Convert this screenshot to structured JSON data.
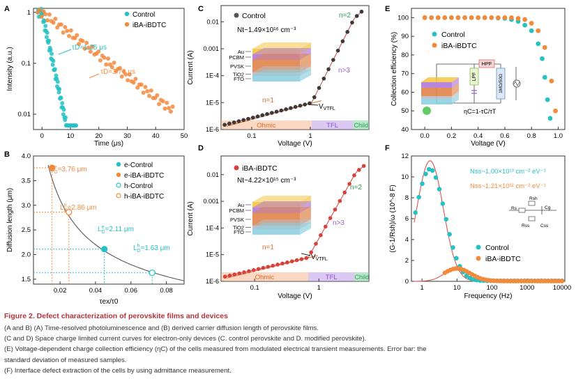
{
  "colors": {
    "control": "#27c1c4",
    "ibdtc": "#f28a3c",
    "fit": "#d9534f",
    "scl": "#3a3a3a",
    "ibdtc_scl": "#d8403c",
    "ohmic": "#f7a97a",
    "tfl": "#b993e6",
    "child": "#7fd6a0",
    "n2": "#2e9b55",
    "n3": "#9a5fd6",
    "n1": "#e26b2b",
    "caption_title": "#b5323a"
  },
  "chart_data": [
    {
      "panel": "A",
      "type": "scatter",
      "xlabel": "Time (μs)",
      "ylabel": "Intensity (a.u.)",
      "xlim": [
        -3,
        50
      ],
      "ylim_log": [
        0.005,
        1.2
      ],
      "xticks": [
        0,
        10,
        20,
        30,
        40,
        50
      ],
      "yticks": [
        {
          "v": 1,
          "label": "1"
        },
        {
          "v": 0.1,
          "label": "0.1"
        },
        {
          "v": 0.01,
          "label": "0.01"
        }
      ],
      "series": [
        {
          "name": "Control",
          "tau": 1.25,
          "label": "τD=1.25 μs",
          "color": "#27c1c4"
        },
        {
          "name": "iBA-iBDTC",
          "tau": 3.71,
          "label": "τD=3.71 μs",
          "color": "#f28a3c"
        }
      ]
    },
    {
      "panel": "B",
      "type": "scatter",
      "xlabel": "τex/τ0",
      "ylabel": "Diffusion length (μm)",
      "xlim": [
        0.005,
        0.09
      ],
      "ylim": [
        1.4,
        4.0
      ],
      "xticks": [
        0.02,
        0.04,
        0.06,
        0.08
      ],
      "yticks": [
        1.5,
        2.0,
        2.5,
        3.0,
        3.5,
        4.0
      ],
      "points": [
        {
          "name": "e-Control",
          "x": 0.045,
          "y": 2.11,
          "label": "L=2.11 μm",
          "color": "#27c1c4",
          "filled": true
        },
        {
          "name": "e-iBA-iBDTC",
          "x": 0.0155,
          "y": 3.76,
          "label": "L=3.76 μm",
          "color": "#f28a3c",
          "filled": true
        },
        {
          "name": "h-Control",
          "x": 0.072,
          "y": 1.63,
          "label": "L=1.63 μm",
          "color": "#27c1c4",
          "filled": false
        },
        {
          "name": "h-iBA-iBDTC",
          "x": 0.025,
          "y": 2.86,
          "label": "L=2.86 μm",
          "color": "#f28a3c",
          "filled": false
        }
      ],
      "legend": [
        "e-Control",
        "e-iBA-iBDTC",
        "h-Control",
        "h-iBA-iBDTC"
      ]
    },
    {
      "panel": "C",
      "type": "scatter",
      "title": "Control",
      "annotation": "Nt~1.49×10^16 cm^-3",
      "xlabel": "Voltage (V)",
      "ylabel": "Current (A)",
      "xlim_log": [
        0.03,
        10
      ],
      "ylim_log": [
        1e-06,
        0.04
      ],
      "vtfl": 1.0,
      "regions": [
        "Ohmic",
        "TFL",
        "Child"
      ],
      "slopes": [
        "n=1",
        "n>3",
        "n=2"
      ],
      "stack": [
        "Au",
        "PCBM",
        "PVSK",
        "TiO2",
        "FTO"
      ]
    },
    {
      "panel": "D",
      "type": "scatter",
      "title": "iBA-iBDTC",
      "annotation": "Nt~4.22×10^15 cm^-3",
      "xlabel": "Voltage (V)",
      "ylabel": "Current (A)",
      "xlim_log": [
        0.03,
        6
      ],
      "ylim_log": [
        1e-06,
        0.05
      ],
      "vtfl": 0.7,
      "regions": [
        "Ohmic",
        "TFL",
        "Child"
      ],
      "slopes": [
        "n=1",
        "n>3",
        "n=2"
      ],
      "stack": [
        "Au",
        "PCBM",
        "PVSK",
        "TiO2",
        "FTO"
      ]
    },
    {
      "panel": "E",
      "type": "scatter",
      "xlabel": "Voltage (V)",
      "ylabel": "Collection efficiency (%)",
      "xlim": [
        -0.1,
        1.05
      ],
      "ylim": [
        40,
        105
      ],
      "xticks": [
        0.0,
        0.2,
        0.4,
        0.6,
        0.8,
        1.0
      ],
      "yticks": [
        40,
        50,
        60,
        70,
        80,
        90,
        100
      ],
      "series": [
        {
          "name": "Control",
          "color": "#27c1c4",
          "x": [
            0.0,
            0.05,
            0.1,
            0.15,
            0.2,
            0.25,
            0.3,
            0.35,
            0.4,
            0.45,
            0.5,
            0.55,
            0.6,
            0.65,
            0.7,
            0.75,
            0.8,
            0.85,
            0.88,
            0.9,
            0.92,
            0.94
          ],
          "y": [
            100,
            100,
            100,
            100,
            100,
            100,
            100,
            100,
            100,
            100,
            100,
            99.8,
            99.6,
            99,
            98,
            96,
            93,
            86,
            78,
            68,
            56,
            46
          ]
        },
        {
          "name": "iBA-iBDTC",
          "color": "#f28a3c",
          "x": [
            0.0,
            0.05,
            0.1,
            0.15,
            0.2,
            0.25,
            0.3,
            0.35,
            0.4,
            0.45,
            0.5,
            0.55,
            0.6,
            0.65,
            0.7,
            0.75,
            0.8,
            0.85,
            0.9,
            0.95,
            0.98
          ],
          "y": [
            100,
            100,
            100,
            100,
            100,
            100,
            100,
            100,
            100,
            100,
            100,
            100,
            100,
            100,
            99.6,
            99,
            97,
            93,
            84,
            66,
            50
          ]
        }
      ],
      "circuit": {
        "lpf": "LPF",
        "hpf": "HPF",
        "res": "1MΩ/50Ω",
        "formula": "ηC=1-τC/τT"
      }
    },
    {
      "panel": "F",
      "type": "scatter",
      "xlabel": "Frequency (Hz)",
      "ylabel": "(G-1/Rsh)/ω (10^-8 F)",
      "xlim_log": [
        0.5,
        12000
      ],
      "ylim": [
        0,
        12
      ],
      "xticks": [
        {
          "v": 1,
          "label": "1"
        },
        {
          "v": 10,
          "label": "10"
        },
        {
          "v": 100,
          "label": "100"
        },
        {
          "v": 1000,
          "label": "1000"
        },
        {
          "v": 10000,
          "label": "10000"
        }
      ],
      "yticks": [
        0,
        2,
        4,
        6,
        8,
        10,
        12
      ],
      "series": [
        {
          "name": "Control",
          "color": "#27c1c4",
          "peak_f": 1.7,
          "peak_y": 10.7
        },
        {
          "name": "iBA-iBDTC",
          "color": "#f28a3c",
          "peak_f": 10,
          "peak_y": 1.2
        }
      ],
      "nss": [
        "Nss~1.00×10^13 cm^-2 eV^-1",
        "Nss~1.21×10^12 cm^-2 eV^-1"
      ]
    }
  ],
  "labels": {
    "A": "A",
    "B": "B",
    "C": "C",
    "D": "D",
    "E": "E",
    "F": "F",
    "a_legend_control": "Control",
    "a_legend_ibdtc": "iBA-iBDTC",
    "a_tau_control": "τD=1.25 μs",
    "a_tau_ibdtc": "τD=3.71 μs",
    "b_l1": "3.76 μm",
    "b_l2": "2.86 μm",
    "b_l3": "2.11 μm",
    "b_l4": "1.63 μm",
    "c_title": "Control",
    "c_nt": "Nt~1.49×10¹⁶ cm⁻³",
    "d_title": "iBA-iBDTC",
    "d_nt": "Nt~4.22×10¹⁵ cm⁻³",
    "vtfl": "VTFL",
    "n1": "n=1",
    "n2": "n=2",
    "n3": "n>3",
    "ohmic": "Ohmic",
    "tfl": "TFL",
    "child": "Child",
    "e_legend_control": "Control",
    "e_legend_ibdtc": "iBA-iBDTC",
    "e_formula": "ηC=1-τC/τT",
    "f_nss1": "Nss~1.00×10¹³ cm⁻² eV⁻¹",
    "f_nss2": "Nss~1.21×10¹² cm⁻² eV⁻¹",
    "f_legend_control": "Control",
    "f_legend_ibdtc": "iBA-iBDTC",
    "lpf": "LPF",
    "hpf": "HPF",
    "res": "1MΩ/50Ω",
    "rs": "Rs",
    "rsh": "Rsh",
    "cg": "Cg",
    "rss": "Rss",
    "css": "Css",
    "au": "Au",
    "pcbm": "PCBM",
    "pvsk": "PVSK",
    "tio2": "TiO2",
    "fto": "FTO"
  },
  "caption": {
    "title": "Figure 2. Defect characterization of perovskite films and devices",
    "lines": [
      "(A and B) (A) Time-resolved photoluminescence and (B) derived carrier diffusion length of perovskite films.",
      "(C and D) Space charge limited current curves for electron-only devices (C. control perovskite and D. modified perovskite).",
      "(E) Voltage-dependent charge collection efficiency (ηC) of the cells measured from modulated electrical transient measurements. Error bar: the",
      "standard deviation of measured samples.",
      "(F) Interface defect extraction of the cells by using admittance measurement."
    ]
  }
}
